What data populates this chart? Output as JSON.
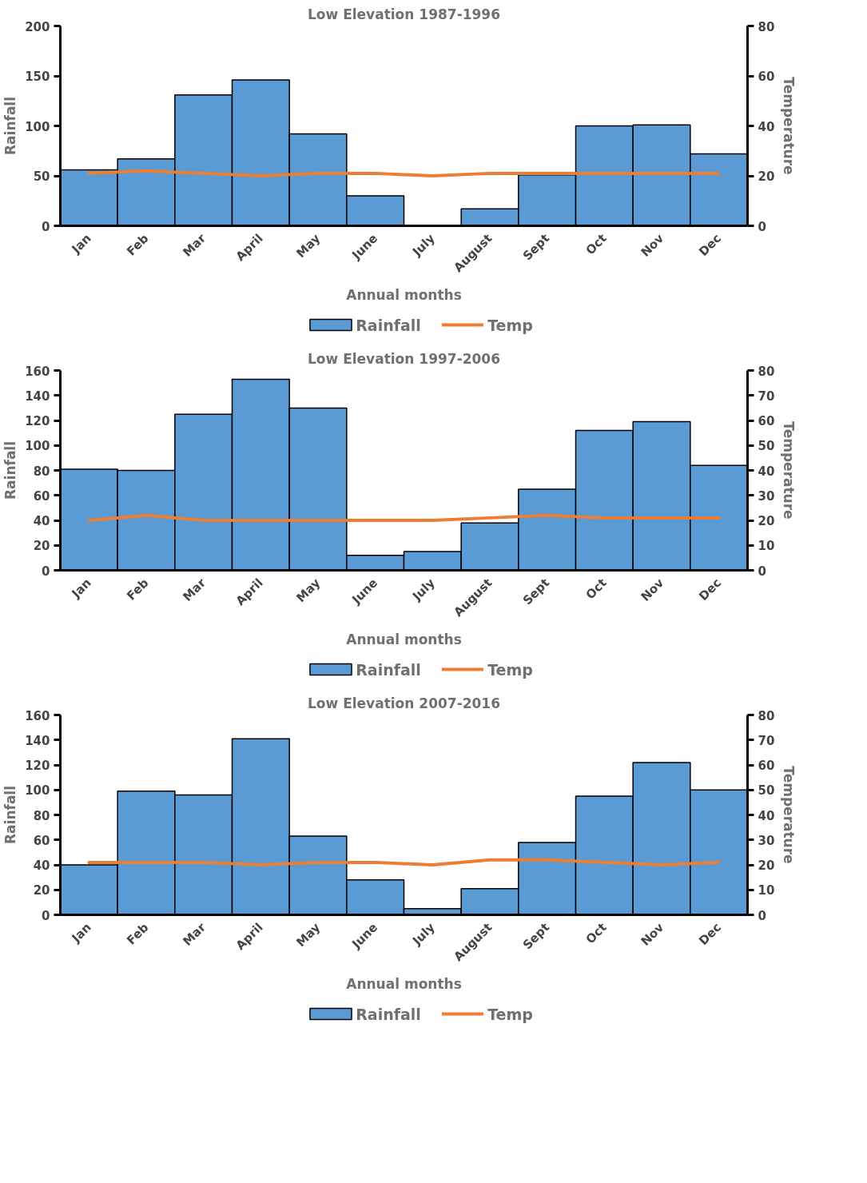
{
  "chart_data": [
    {
      "type": "bar",
      "title": "Low Elevation 1987-1996",
      "xlabel": "Annual months",
      "ylabel": "Rainfall",
      "y2label": "Temperature",
      "categories": [
        "Jan",
        "Feb",
        "Mar",
        "April",
        "May",
        "June",
        "July",
        "August",
        "Sept",
        "Oct",
        "Nov",
        "Dec"
      ],
      "series": [
        {
          "name": "Rainfall",
          "color": "#5b9bd5",
          "values": [
            56,
            67,
            131,
            146,
            92,
            30,
            0,
            17,
            51,
            100,
            101,
            72
          ]
        },
        {
          "name": "Temp",
          "type": "line",
          "axis": "y2",
          "color": "#ed7d31",
          "values": [
            21,
            22,
            21,
            20,
            21,
            21,
            20,
            21,
            21,
            21,
            21,
            21
          ]
        }
      ],
      "ylim": [
        0,
        200
      ],
      "yticks": [
        0,
        50,
        100,
        150,
        200
      ],
      "y2lim": [
        0,
        80
      ],
      "y2ticks": [
        0,
        20,
        40,
        60,
        80
      ],
      "legend": "bottom"
    },
    {
      "type": "bar",
      "title": "Low Elevation 1997-2006",
      "xlabel": "Annual months",
      "ylabel": "Rainfall",
      "y2label": "Temperature",
      "categories": [
        "Jan",
        "Feb",
        "Mar",
        "April",
        "May",
        "June",
        "July",
        "August",
        "Sept",
        "Oct",
        "Nov",
        "Dec"
      ],
      "series": [
        {
          "name": "Rainfall",
          "color": "#5b9bd5",
          "values": [
            81,
            80,
            125,
            153,
            130,
            12,
            15,
            38,
            65,
            112,
            119,
            84
          ]
        },
        {
          "name": "Temp",
          "type": "line",
          "axis": "y2",
          "color": "#ed7d31",
          "values": [
            20,
            22,
            20,
            20,
            20,
            20,
            20,
            21,
            22,
            21,
            21,
            21
          ]
        }
      ],
      "ylim": [
        0,
        160
      ],
      "yticks": [
        0,
        20,
        40,
        60,
        80,
        100,
        120,
        140,
        160
      ],
      "y2lim": [
        0,
        80
      ],
      "y2ticks": [
        0,
        10,
        20,
        30,
        40,
        50,
        60,
        70,
        80
      ],
      "legend": "bottom"
    },
    {
      "type": "bar",
      "title": "Low Elevation 2007-2016",
      "xlabel": "Annual months",
      "ylabel": "Rainfall",
      "y2label": "Temperature",
      "categories": [
        "Jan",
        "Feb",
        "Mar",
        "April",
        "May",
        "June",
        "July",
        "August",
        "Sept",
        "Oct",
        "Nov",
        "Dec"
      ],
      "series": [
        {
          "name": "Rainfall",
          "color": "#5b9bd5",
          "values": [
            40,
            99,
            96,
            141,
            63,
            28,
            5,
            21,
            58,
            95,
            122,
            100
          ]
        },
        {
          "name": "Temp",
          "type": "line",
          "axis": "y2",
          "color": "#ed7d31",
          "values": [
            21,
            21,
            21,
            20,
            21,
            21,
            20,
            22,
            22,
            21,
            20,
            21
          ]
        }
      ],
      "ylim": [
        0,
        160
      ],
      "yticks": [
        0,
        20,
        40,
        60,
        80,
        100,
        120,
        140,
        160
      ],
      "y2lim": [
        0,
        80
      ],
      "y2ticks": [
        0,
        10,
        20,
        30,
        40,
        50,
        60,
        70,
        80
      ],
      "legend": "bottom"
    }
  ]
}
